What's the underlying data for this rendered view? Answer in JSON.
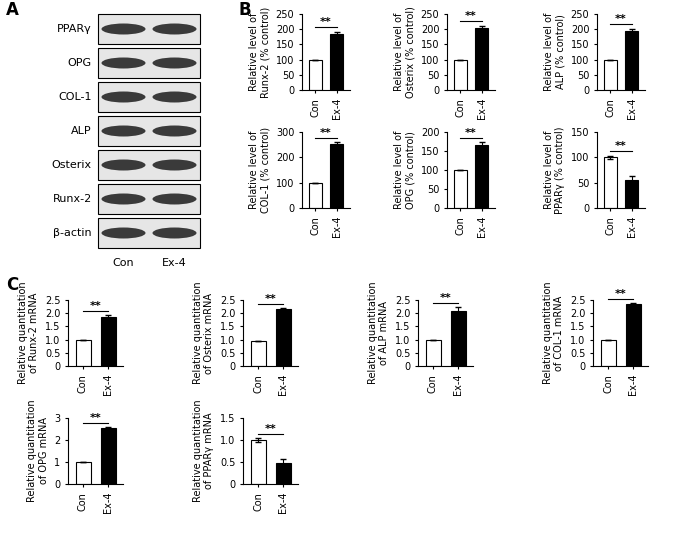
{
  "panel_labels": [
    "A",
    "B",
    "C"
  ],
  "blot": {
    "rows": [
      "PPARγ",
      "OPG",
      "COL-1",
      "ALP",
      "Osterix",
      "Runx-2",
      "β-actin"
    ],
    "lanes": [
      "Con",
      "Ex-4"
    ]
  },
  "chart_data": [
    {
      "type": "bar",
      "ylabel": "Relative level of\nRunx-2 (% control)",
      "categories": [
        "Con",
        "Ex-4"
      ],
      "values": [
        100,
        183
      ],
      "errors": [
        0,
        8
      ],
      "colors": [
        "#ffffff",
        "#000000"
      ],
      "ylim": [
        0,
        250
      ],
      "yticks": [
        0,
        50,
        100,
        150,
        200,
        250
      ],
      "annotation": "**"
    },
    {
      "type": "bar",
      "ylabel": "Relative level of\nOsterix (% control)",
      "categories": [
        "Con",
        "Ex-4"
      ],
      "values": [
        100,
        205
      ],
      "errors": [
        0,
        6
      ],
      "colors": [
        "#ffffff",
        "#000000"
      ],
      "ylim": [
        0,
        250
      ],
      "yticks": [
        0,
        50,
        100,
        150,
        200,
        250
      ],
      "annotation": "**"
    },
    {
      "type": "bar",
      "ylabel": "Relative level of\nALP (% control)",
      "categories": [
        "Con",
        "Ex-4"
      ],
      "values": [
        100,
        195
      ],
      "errors": [
        0,
        7
      ],
      "colors": [
        "#ffffff",
        "#000000"
      ],
      "ylim": [
        0,
        250
      ],
      "yticks": [
        0,
        50,
        100,
        150,
        200,
        250
      ],
      "annotation": "**"
    },
    {
      "type": "bar",
      "ylabel": "Relative level of\nCOL-1 (% control)",
      "categories": [
        "Con",
        "Ex-4"
      ],
      "values": [
        100,
        252
      ],
      "errors": [
        0,
        8
      ],
      "colors": [
        "#ffffff",
        "#000000"
      ],
      "ylim": [
        0,
        300
      ],
      "yticks": [
        0,
        100,
        200,
        300
      ],
      "annotation": "**"
    },
    {
      "type": "bar",
      "ylabel": "Relative level of\nOPG (% control)",
      "categories": [
        "Con",
        "Ex-4"
      ],
      "values": [
        100,
        165
      ],
      "errors": [
        0,
        8
      ],
      "colors": [
        "#ffffff",
        "#000000"
      ],
      "ylim": [
        0,
        200
      ],
      "yticks": [
        0,
        50,
        100,
        150,
        200
      ],
      "annotation": "**"
    },
    {
      "type": "bar",
      "ylabel": "Relative level of\nPPARγ (% control)",
      "categories": [
        "Con",
        "Ex-4"
      ],
      "values": [
        100,
        55
      ],
      "errors": [
        3,
        8
      ],
      "colors": [
        "#ffffff",
        "#000000"
      ],
      "ylim": [
        0,
        150
      ],
      "yticks": [
        0,
        50,
        100,
        150
      ],
      "annotation": "**"
    },
    {
      "type": "bar",
      "ylabel": "Relative quantitation\nof Runx-2 mRNA",
      "categories": [
        "Con",
        "Ex-4"
      ],
      "values": [
        1.0,
        1.85
      ],
      "errors": [
        0,
        0.07
      ],
      "colors": [
        "#ffffff",
        "#000000"
      ],
      "ylim": [
        0,
        2.5
      ],
      "yticks": [
        0,
        0.5,
        {
          "value": 1.0,
          "label": "1.0"
        },
        1.5,
        {
          "value": 2.0,
          "label": "2.0"
        },
        2.5
      ],
      "annotation": "**"
    },
    {
      "type": "bar",
      "ylabel": "Relative quantitation\nof Osterix mRNA",
      "categories": [
        "Con",
        "Ex-4"
      ],
      "values": [
        0.95,
        2.15
      ],
      "errors": [
        0,
        0.05
      ],
      "colors": [
        "#ffffff",
        "#000000"
      ],
      "ylim": [
        0,
        2.5
      ],
      "yticks": [
        0,
        0.5,
        {
          "value": 1.0,
          "label": "1.0"
        },
        1.5,
        {
          "value": 2.0,
          "label": "2.0"
        },
        2.5
      ],
      "annotation": "**"
    },
    {
      "type": "bar",
      "ylabel": "Relative quantitation\nof ALP mRNA",
      "categories": [
        "Con",
        "Ex-4"
      ],
      "values": [
        1.0,
        2.1
      ],
      "errors": [
        0,
        0.12
      ],
      "colors": [
        "#ffffff",
        "#000000"
      ],
      "ylim": [
        0,
        2.5
      ],
      "yticks": [
        0,
        0.5,
        {
          "value": 1.0,
          "label": "1.0"
        },
        1.5,
        {
          "value": 2.0,
          "label": "2.0"
        },
        2.5
      ],
      "annotation": "**"
    },
    {
      "type": "bar",
      "ylabel": "Relative quantitation\nof COL-1 mRNA",
      "categories": [
        "Con",
        "Ex-4"
      ],
      "values": [
        1.0,
        2.35
      ],
      "errors": [
        0,
        0.05
      ],
      "colors": [
        "#ffffff",
        "#000000"
      ],
      "ylim": [
        0,
        2.5
      ],
      "yticks": [
        0,
        0.5,
        {
          "value": 1.0,
          "label": "1.0"
        },
        1.5,
        {
          "value": 2.0,
          "label": "2.0"
        },
        2.5
      ],
      "annotation": "**"
    },
    {
      "type": "bar",
      "ylabel": "Relative quantitation\nof OPG mRNA",
      "categories": [
        "Con",
        "Ex-4"
      ],
      "values": [
        1.0,
        2.55
      ],
      "errors": [
        0,
        0.06
      ],
      "colors": [
        "#ffffff",
        "#000000"
      ],
      "ylim": [
        0,
        3
      ],
      "yticks": [
        0,
        1,
        2,
        3
      ],
      "annotation": "**"
    },
    {
      "type": "bar",
      "ylabel": "Relative quantitation\nof PPARγ mRNA",
      "categories": [
        "Con",
        "Ex-4"
      ],
      "values": [
        1.0,
        0.48
      ],
      "errors": [
        0.04,
        0.08
      ],
      "colors": [
        "#ffffff",
        "#000000"
      ],
      "ylim": [
        0,
        1.5
      ],
      "yticks": [
        0,
        0.5,
        {
          "value": 1.0,
          "label": "1.0"
        },
        1.5
      ],
      "annotation": "**"
    }
  ]
}
